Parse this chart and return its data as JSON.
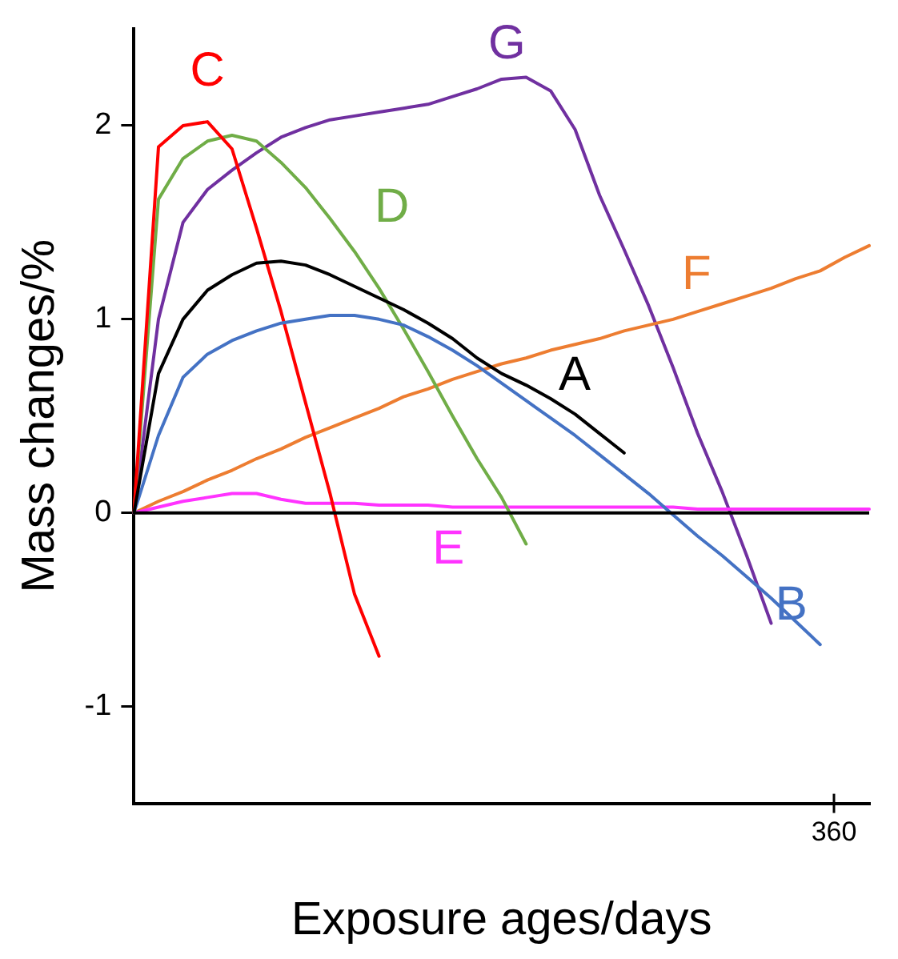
{
  "chart_data": {
    "type": "line",
    "xlabel": "Exposure ages/days",
    "ylabel": "Mass changes/%",
    "categories": [
      null,
      null,
      null,
      null,
      null,
      null,
      null,
      null,
      null,
      null,
      null,
      null,
      null,
      null,
      null,
      null,
      null,
      null,
      null,
      null,
      null,
      null,
      null,
      null,
      null,
      null,
      null,
      null,
      null,
      null,
      null
    ],
    "ylim": [
      -1.5,
      2.5
    ],
    "yticks": [
      -1,
      0,
      1,
      2
    ],
    "grid": false,
    "legend": false,
    "ref_lines": [
      {
        "axis": "y",
        "value": 0,
        "color": "#000000"
      }
    ],
    "annotations": [
      "360"
    ],
    "series": [
      {
        "name": "A",
        "color": "#000000",
        "values": [
          0,
          0.72,
          1.0,
          1.15,
          1.23,
          1.29,
          1.3,
          1.28,
          1.23,
          1.17,
          1.11,
          1.05,
          0.98,
          0.9,
          0.8,
          0.72,
          0.66,
          0.59,
          0.51,
          0.41,
          0.31,
          null,
          null,
          null,
          null,
          null,
          null,
          null,
          null,
          null,
          null
        ]
      },
      {
        "name": "B",
        "color": "#4472c4",
        "values": [
          0,
          0.4,
          0.7,
          0.82,
          0.89,
          0.94,
          0.98,
          1.0,
          1.02,
          1.02,
          1.0,
          0.97,
          0.91,
          0.84,
          0.76,
          0.67,
          0.58,
          0.49,
          0.4,
          0.3,
          0.2,
          0.1,
          -0.01,
          -0.12,
          -0.22,
          -0.33,
          -0.44,
          -0.56,
          -0.68,
          null,
          null
        ]
      },
      {
        "name": "C",
        "color": "#ff0000",
        "values": [
          0,
          1.89,
          2.0,
          2.02,
          1.88,
          1.47,
          1.04,
          0.57,
          0.1,
          -0.42,
          -0.74,
          null,
          null,
          null,
          null,
          null,
          null,
          null,
          null,
          null,
          null,
          null,
          null,
          null,
          null,
          null,
          null,
          null,
          null,
          null,
          null
        ]
      },
      {
        "name": "D",
        "color": "#70ad47",
        "values": [
          0,
          1.62,
          1.83,
          1.92,
          1.95,
          1.92,
          1.81,
          1.68,
          1.52,
          1.35,
          1.16,
          0.95,
          0.73,
          0.5,
          0.28,
          0.08,
          -0.16,
          null,
          null,
          null,
          null,
          null,
          null,
          null,
          null,
          null,
          null,
          null,
          null,
          null,
          null
        ]
      },
      {
        "name": "E",
        "color": "#ff33ff",
        "values": [
          0,
          0.03,
          0.06,
          0.08,
          0.1,
          0.1,
          0.07,
          0.05,
          0.05,
          0.05,
          0.04,
          0.04,
          0.04,
          0.03,
          0.03,
          0.03,
          0.03,
          0.03,
          0.03,
          0.03,
          0.03,
          0.03,
          0.03,
          0.02,
          0.02,
          0.02,
          0.02,
          0.02,
          0.02,
          0.02,
          0.02
        ]
      },
      {
        "name": "F",
        "color": "#ed7d31",
        "values": [
          0,
          0.06,
          0.11,
          0.17,
          0.22,
          0.28,
          0.33,
          0.39,
          0.44,
          0.49,
          0.54,
          0.6,
          0.64,
          0.69,
          0.73,
          0.77,
          0.8,
          0.84,
          0.87,
          0.9,
          0.94,
          0.97,
          1.0,
          1.04,
          1.08,
          1.12,
          1.16,
          1.21,
          1.25,
          1.32,
          1.38
        ]
      },
      {
        "name": "G",
        "color": "#7030a0",
        "values": [
          0,
          1.0,
          1.5,
          1.67,
          1.77,
          1.86,
          1.94,
          1.99,
          2.03,
          2.05,
          2.07,
          2.09,
          2.11,
          2.15,
          2.19,
          2.24,
          2.25,
          2.18,
          1.98,
          1.64,
          1.36,
          1.07,
          0.75,
          0.41,
          0.11,
          -0.22,
          -0.57,
          null,
          null,
          null,
          null
        ]
      }
    ]
  }
}
